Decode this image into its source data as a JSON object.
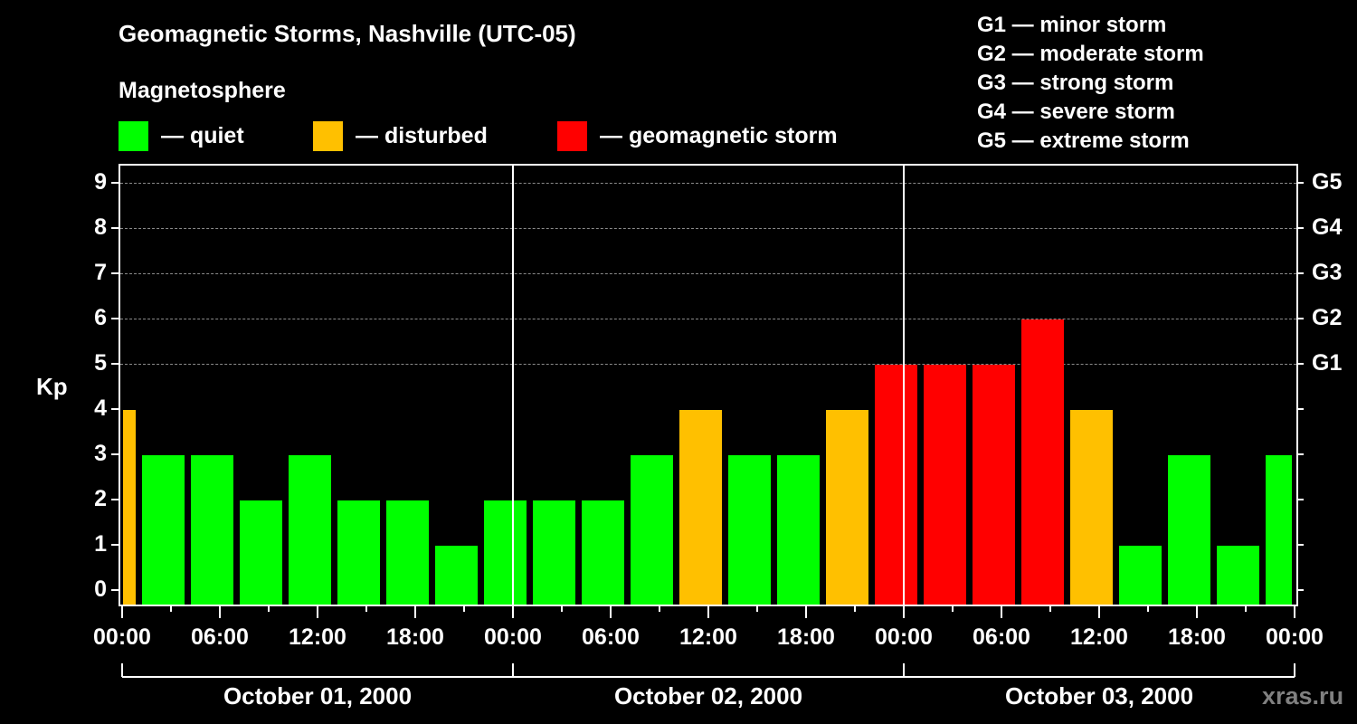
{
  "header": {
    "title": "Geomagnetic Storms, Nashville (UTC-05)",
    "subtitle": "Magnetosphere"
  },
  "legend": [
    {
      "label": "— quiet",
      "color": "#00ff00"
    },
    {
      "label": "— disturbed",
      "color": "#ffc000"
    },
    {
      "label": "— geomagnetic storm",
      "color": "#ff0000"
    }
  ],
  "storm_scale": [
    "G1 — minor storm",
    "G2 — moderate storm",
    "G3 — strong storm",
    "G4 — severe storm",
    "G5 — extreme storm"
  ],
  "axes": {
    "ylabel": "Kp",
    "yticks": [
      "0",
      "1",
      "2",
      "3",
      "4",
      "5",
      "6",
      "7",
      "8",
      "9"
    ],
    "gticks": [
      "G1",
      "G2",
      "G3",
      "G4",
      "G5"
    ],
    "xticks": [
      "00:00",
      "06:00",
      "12:00",
      "18:00",
      "00:00",
      "06:00",
      "12:00",
      "18:00",
      "00:00",
      "06:00",
      "12:00",
      "18:00",
      "00:00"
    ],
    "dates": [
      "October 01, 2000",
      "October 02, 2000",
      "October 03, 2000"
    ]
  },
  "watermark": "xras.ru",
  "chart_data": {
    "type": "bar",
    "title": "Geomagnetic Storms, Nashville (UTC-05)",
    "subtitle": "Magnetosphere",
    "xlabel": "",
    "ylabel": "Kp",
    "ylim": [
      0,
      9
    ],
    "y2_labels": {
      "5": "G1",
      "6": "G2",
      "7": "G3",
      "8": "G4",
      "9": "G5"
    },
    "grid": "dashed horizontal at Kp 5-9",
    "legend_position": "top",
    "categories": [
      "Oct 01 00:00-01:00",
      "Oct 01 01:00",
      "Oct 01 04:00",
      "Oct 01 07:00",
      "Oct 01 10:00",
      "Oct 01 13:00",
      "Oct 01 16:00",
      "Oct 01 19:00",
      "Oct 01 22:00",
      "Oct 02 01:00",
      "Oct 02 04:00",
      "Oct 02 07:00",
      "Oct 02 10:00",
      "Oct 02 13:00",
      "Oct 02 16:00",
      "Oct 02 19:00",
      "Oct 02 22:00",
      "Oct 03 01:00",
      "Oct 03 04:00",
      "Oct 03 07:00",
      "Oct 03 10:00",
      "Oct 03 13:00",
      "Oct 03 16:00",
      "Oct 03 19:00",
      "Oct 03 22:00-24:00"
    ],
    "values": [
      4,
      3,
      3,
      2,
      3,
      2,
      2,
      1,
      2,
      2,
      2,
      3,
      4,
      3,
      3,
      4,
      5,
      5,
      5,
      6,
      4,
      1,
      3,
      1,
      3
    ],
    "colors": [
      "disturbed",
      "quiet",
      "quiet",
      "quiet",
      "quiet",
      "quiet",
      "quiet",
      "quiet",
      "quiet",
      "quiet",
      "quiet",
      "quiet",
      "disturbed",
      "quiet",
      "quiet",
      "disturbed",
      "storm",
      "storm",
      "storm",
      "storm",
      "disturbed",
      "quiet",
      "quiet",
      "quiet",
      "quiet"
    ],
    "color_map": {
      "quiet": "#00ff00",
      "disturbed": "#ffc000",
      "storm": "#ff0000"
    }
  }
}
